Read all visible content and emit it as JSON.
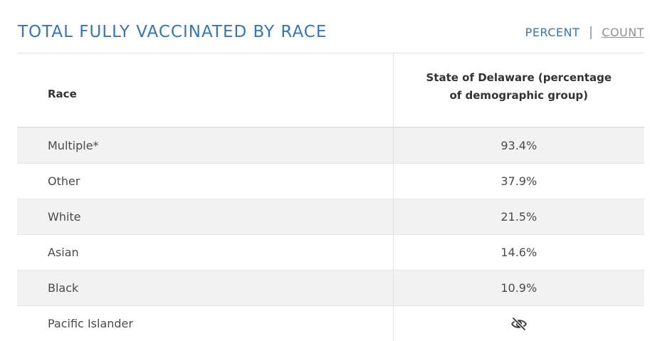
{
  "header": {
    "title": "TOTAL FULLY VACCINATED BY RACE",
    "toggle": {
      "percent_label": "PERCENT",
      "count_label": "COUNT",
      "active": "PERCENT"
    }
  },
  "table": {
    "columns": {
      "race": "Race",
      "value": "State of Delaware (percentage of demographic group)"
    },
    "rows": [
      {
        "race": "Multiple*",
        "value": "93.4%"
      },
      {
        "race": "Other",
        "value": "37.9%"
      },
      {
        "race": "White",
        "value": "21.5%"
      },
      {
        "race": "Asian",
        "value": "14.6%"
      },
      {
        "race": "Black",
        "value": "10.9%"
      },
      {
        "race": "Pacific Islander",
        "value": null,
        "icon": "eye-slash-icon"
      }
    ]
  },
  "colors": {
    "accent": "#2f76c9",
    "row_shade": "#f2f2f2",
    "muted_link": "#8f8f8f"
  }
}
